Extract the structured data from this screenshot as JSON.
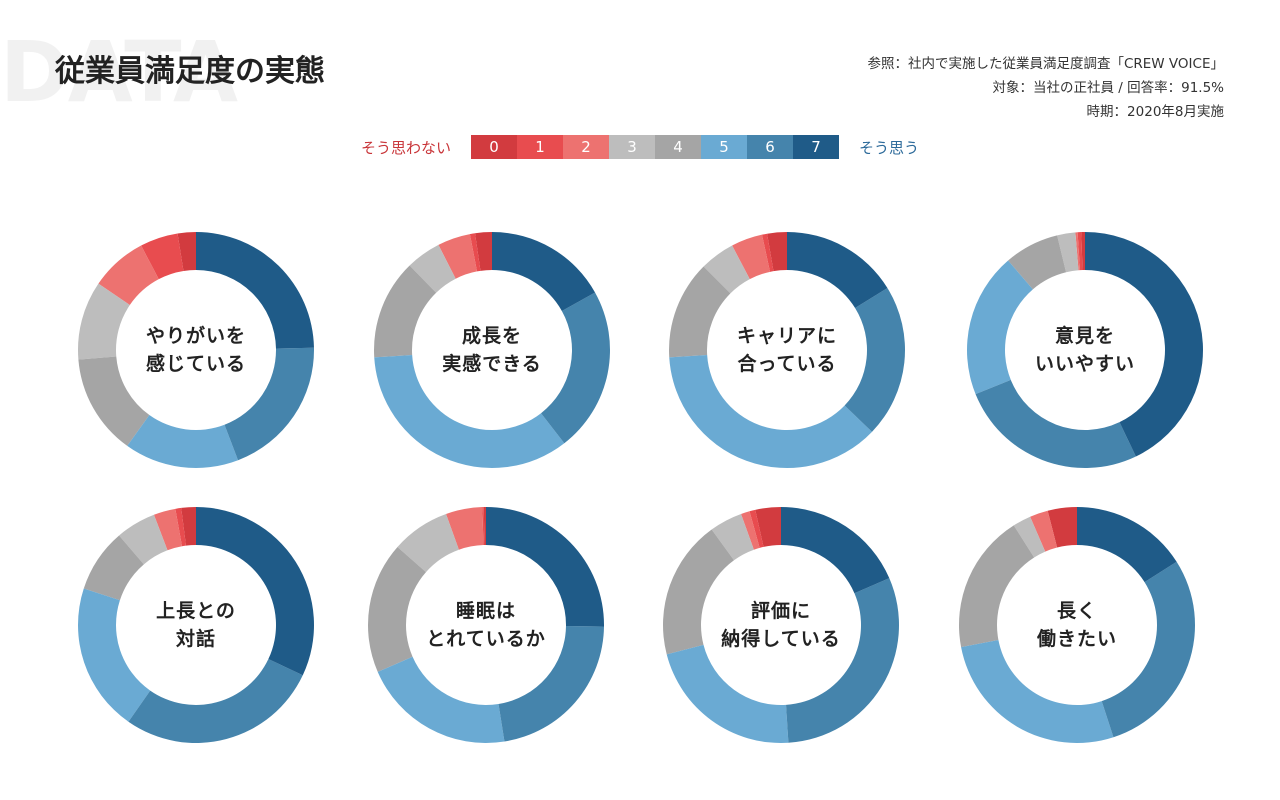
{
  "header": {
    "bg_word": "DATA",
    "title": "従業員満足度の実態",
    "meta_lines": [
      "参照：社内で実施した従業員満足度調査「CREW VOICE」",
      "対象：当社の正社員 / 回答率：91.5%",
      "時期：2020年8月実施"
    ]
  },
  "legend": {
    "low_label": "そう思わない",
    "high_label": "そう思う",
    "scale": [
      "0",
      "1",
      "2",
      "3",
      "4",
      "5",
      "6",
      "7"
    ],
    "colors": [
      "#d23b3f",
      "#e84c4f",
      "#ed7270",
      "#bdbdbd",
      "#a5a5a5",
      "#6aaad3",
      "#4584ac",
      "#1f5b88"
    ]
  },
  "chart_data": [
    {
      "type": "pie",
      "label_lines": [
        "やりがいを",
        "感じている"
      ],
      "values": [
        2.5,
        5.2,
        7.8,
        10.8,
        13.8,
        15.7,
        19.5,
        24.7
      ]
    },
    {
      "type": "pie",
      "label_lines": [
        "成長を",
        "実感できる"
      ],
      "values": [
        2.3,
        0.7,
        4.5,
        4.8,
        13.7,
        34.5,
        22.6,
        16.9
      ]
    },
    {
      "type": "pie",
      "label_lines": [
        "キャリアに",
        "合っている"
      ],
      "values": [
        2.7,
        0.7,
        4.3,
        4.8,
        13.5,
        36.8,
        21.0,
        16.2
      ]
    },
    {
      "type": "pie",
      "label_lines": [
        "意見を",
        "いいやすい"
      ],
      "values": [
        0.5,
        0.5,
        0.3,
        2.5,
        7.5,
        19.8,
        26.0,
        42.9
      ]
    },
    {
      "type": "pie",
      "label_lines": [
        "上長との",
        "対話"
      ],
      "values": [
        2.0,
        0.8,
        3.0,
        5.5,
        8.7,
        20.3,
        27.7,
        32.0
      ]
    },
    {
      "type": "pie",
      "label_lines": [
        "睡眠は",
        "とれているか"
      ],
      "values": [
        0.3,
        0.2,
        5.0,
        8.0,
        18.0,
        21.0,
        22.3,
        25.2
      ]
    },
    {
      "type": "pie",
      "label_lines": [
        "評価に",
        "納得している"
      ],
      "values": [
        3.5,
        0.8,
        1.2,
        4.5,
        19.0,
        22.0,
        30.5,
        18.5
      ]
    },
    {
      "type": "pie",
      "label_lines": [
        "長く",
        "働きたい"
      ],
      "values": [
        4.0,
        0.0,
        2.5,
        2.5,
        19.0,
        27.0,
        29.0,
        16.0
      ]
    }
  ]
}
